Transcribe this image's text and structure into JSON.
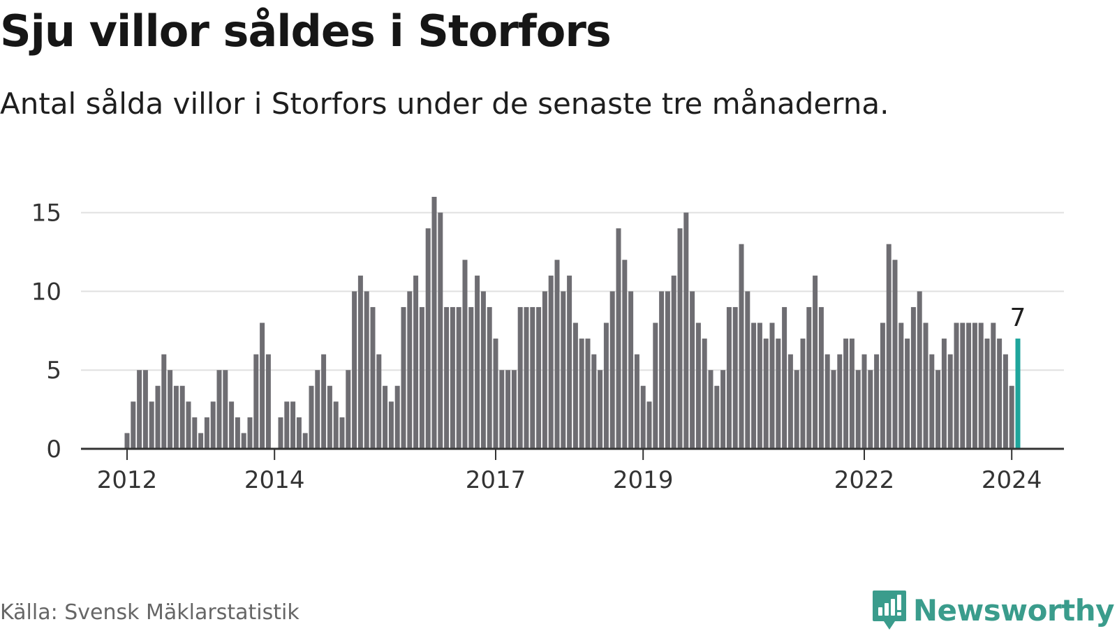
{
  "title": "Sju villor såldes i Storfors",
  "subtitle": "Antal sålda villor i Storfors under de senaste tre månaderna.",
  "source": "Källa: Svensk Mäklarstatistik",
  "logo": {
    "text": "Newsworthy",
    "icon": "newsworthy-logo-icon"
  },
  "colors": {
    "bar": "#6e6d72",
    "highlight": "#1fa59c",
    "grid": "#e0e0e0",
    "axis": "#333333",
    "brand": "#3a9c8c"
  },
  "chart_data": {
    "type": "bar",
    "title": "Sju villor såldes i Storfors",
    "xlabel": "",
    "ylabel": "",
    "ylim": [
      0,
      16
    ],
    "yticks": [
      0,
      5,
      10,
      15
    ],
    "first_period": "2012-01",
    "xtick_labels": [
      {
        "label": "2012",
        "index": 0
      },
      {
        "label": "2014",
        "index": 24
      },
      {
        "label": "2017",
        "index": 60
      },
      {
        "label": "2019",
        "index": 84
      },
      {
        "label": "2022",
        "index": 120
      },
      {
        "label": "2024",
        "index": 144
      }
    ],
    "values": [
      1,
      3,
      5,
      5,
      3,
      4,
      6,
      5,
      4,
      4,
      3,
      2,
      1,
      2,
      3,
      5,
      5,
      3,
      2,
      1,
      2,
      6,
      8,
      6,
      0,
      2,
      3,
      3,
      2,
      1,
      4,
      5,
      6,
      4,
      3,
      2,
      5,
      10,
      11,
      10,
      9,
      6,
      4,
      3,
      4,
      9,
      10,
      11,
      9,
      14,
      16,
      15,
      9,
      9,
      9,
      12,
      9,
      11,
      10,
      9,
      7,
      5,
      5,
      5,
      9,
      9,
      9,
      9,
      10,
      11,
      12,
      10,
      11,
      8,
      7,
      7,
      6,
      5,
      8,
      10,
      14,
      12,
      10,
      6,
      4,
      3,
      8,
      10,
      10,
      11,
      14,
      15,
      10,
      8,
      7,
      5,
      4,
      5,
      9,
      9,
      13,
      10,
      8,
      8,
      7,
      8,
      7,
      9,
      6,
      5,
      7,
      9,
      11,
      9,
      6,
      5,
      6,
      7,
      7,
      5,
      6,
      5,
      6,
      8,
      13,
      12,
      8,
      7,
      9,
      10,
      8,
      6,
      5,
      7,
      6,
      8,
      8,
      8,
      8,
      8,
      7,
      8,
      7,
      6,
      4,
      7
    ],
    "highlight_index": 145,
    "highlight_label": "7"
  }
}
